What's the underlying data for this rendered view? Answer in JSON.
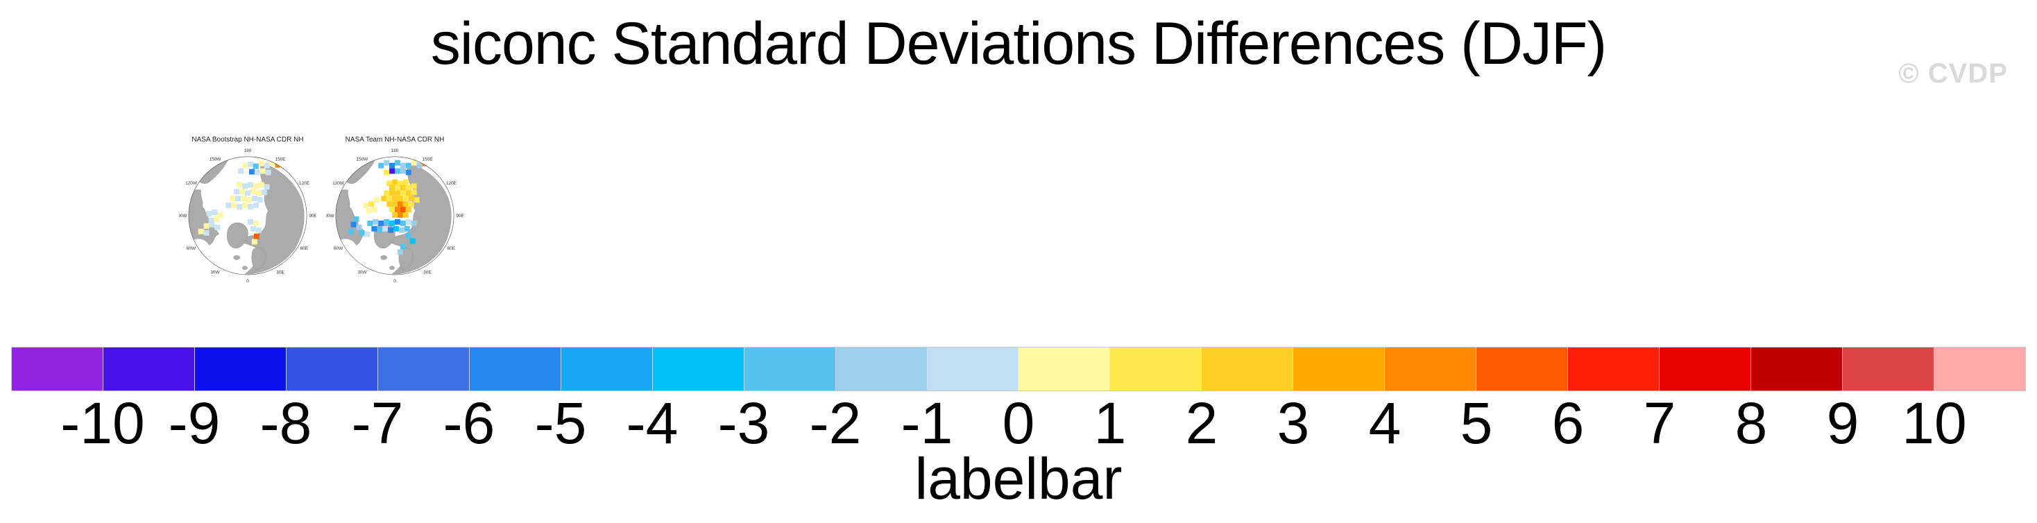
{
  "header": {
    "title": "siconc Standard Deviations Differences (DJF)",
    "watermark": "© CVDP"
  },
  "maps": [
    {
      "title": "NASA Bootstrap NH-NASA CDR NH",
      "lon_labels": [
        "180",
        "150W",
        "120W",
        "90W",
        "60W",
        "30W",
        "0",
        "30E",
        "60E",
        "90E",
        "120E",
        "150E"
      ],
      "patches": [
        [
          96,
          30,
          "Y"
        ],
        [
          104,
          28,
          "B"
        ],
        [
          112,
          31,
          "c"
        ],
        [
          120,
          27,
          "Y"
        ],
        [
          128,
          30,
          "B"
        ],
        [
          136,
          26,
          "Y"
        ],
        [
          144,
          29,
          "o"
        ],
        [
          90,
          38,
          "B"
        ],
        [
          106,
          39,
          "d"
        ],
        [
          114,
          40,
          "B"
        ],
        [
          122,
          38,
          "Y"
        ],
        [
          130,
          40,
          "B"
        ],
        [
          88,
          58,
          "Y"
        ],
        [
          96,
          60,
          "B"
        ],
        [
          104,
          58,
          "B"
        ],
        [
          112,
          60,
          "Y"
        ],
        [
          120,
          58,
          "Y"
        ],
        [
          128,
          61,
          "B"
        ],
        [
          84,
          68,
          "B"
        ],
        [
          92,
          68,
          "Y"
        ],
        [
          100,
          70,
          "B"
        ],
        [
          108,
          68,
          "Y"
        ],
        [
          116,
          70,
          "Y"
        ],
        [
          124,
          69,
          "B"
        ],
        [
          78,
          78,
          "Y"
        ],
        [
          86,
          78,
          "B"
        ],
        [
          94,
          78,
          "Y"
        ],
        [
          102,
          80,
          "Y"
        ],
        [
          110,
          78,
          "B"
        ],
        [
          118,
          80,
          "B"
        ],
        [
          72,
          88,
          "B"
        ],
        [
          80,
          88,
          "Y"
        ],
        [
          88,
          90,
          "B"
        ],
        [
          96,
          88,
          "Y"
        ],
        [
          104,
          90,
          "B"
        ],
        [
          112,
          88,
          "B"
        ],
        [
          44,
          100,
          "B"
        ],
        [
          52,
          98,
          "B"
        ],
        [
          60,
          102,
          "Y"
        ],
        [
          47,
          110,
          "B"
        ],
        [
          55,
          108,
          "Y"
        ],
        [
          40,
          118,
          "Y"
        ],
        [
          48,
          116,
          "B"
        ],
        [
          56,
          120,
          "B"
        ],
        [
          32,
          126,
          "Y"
        ],
        [
          40,
          128,
          "B"
        ],
        [
          104,
          112,
          "B"
        ],
        [
          112,
          114,
          "Y"
        ],
        [
          108,
          122,
          "B"
        ],
        [
          116,
          124,
          "B"
        ],
        [
          113,
          133,
          "O"
        ],
        [
          110,
          141,
          "Y"
        ]
      ]
    },
    {
      "title": "NASA Team NH-NASA CDR NH",
      "lon_labels": [
        "180",
        "150W",
        "120W",
        "90W",
        "60W",
        "30W",
        "0",
        "30E",
        "60E",
        "90E",
        "120E",
        "150E"
      ],
      "patches": [
        [
          80,
          30,
          "c"
        ],
        [
          88,
          26,
          "b"
        ],
        [
          96,
          30,
          "d"
        ],
        [
          104,
          26,
          "c"
        ],
        [
          112,
          30,
          "b"
        ],
        [
          96,
          38,
          "v"
        ],
        [
          104,
          38,
          "c"
        ],
        [
          112,
          38,
          "b"
        ],
        [
          120,
          30,
          "c"
        ],
        [
          128,
          26,
          "Y"
        ],
        [
          136,
          30,
          "b"
        ],
        [
          144,
          27,
          "o"
        ],
        [
          88,
          40,
          "y"
        ],
        [
          120,
          40,
          "d"
        ],
        [
          92,
          56,
          "y"
        ],
        [
          100,
          54,
          "G"
        ],
        [
          108,
          56,
          "y"
        ],
        [
          116,
          54,
          "y"
        ],
        [
          96,
          62,
          "G"
        ],
        [
          104,
          62,
          "y"
        ],
        [
          112,
          62,
          "G"
        ],
        [
          120,
          62,
          "y"
        ],
        [
          128,
          60,
          "y"
        ],
        [
          88,
          70,
          "y"
        ],
        [
          96,
          70,
          "G"
        ],
        [
          104,
          70,
          "G"
        ],
        [
          112,
          70,
          "y"
        ],
        [
          120,
          70,
          "G"
        ],
        [
          128,
          69,
          "y"
        ],
        [
          84,
          78,
          "G"
        ],
        [
          92,
          78,
          "y"
        ],
        [
          100,
          78,
          "G"
        ],
        [
          108,
          78,
          "G"
        ],
        [
          116,
          78,
          "y"
        ],
        [
          124,
          78,
          "G"
        ],
        [
          132,
          80,
          "y"
        ],
        [
          92,
          86,
          "G"
        ],
        [
          100,
          86,
          "G"
        ],
        [
          108,
          86,
          "o"
        ],
        [
          116,
          86,
          "G"
        ],
        [
          124,
          87,
          "y"
        ],
        [
          96,
          94,
          "y"
        ],
        [
          104,
          94,
          "o"
        ],
        [
          112,
          94,
          "O"
        ],
        [
          120,
          94,
          "G"
        ],
        [
          100,
          102,
          "G"
        ],
        [
          108,
          102,
          "o"
        ],
        [
          116,
          102,
          "G"
        ],
        [
          58,
          88,
          "Y"
        ],
        [
          66,
          86,
          "y"
        ],
        [
          62,
          96,
          "Y"
        ],
        [
          70,
          94,
          "Y"
        ],
        [
          74,
          80,
          "Y"
        ],
        [
          64,
          114,
          "c"
        ],
        [
          72,
          112,
          "b"
        ],
        [
          80,
          114,
          "d"
        ],
        [
          88,
          112,
          "c"
        ],
        [
          96,
          114,
          "C"
        ],
        [
          104,
          112,
          "d"
        ],
        [
          112,
          114,
          "c"
        ],
        [
          120,
          112,
          "B"
        ],
        [
          128,
          114,
          "b"
        ],
        [
          70,
          122,
          "d"
        ],
        [
          78,
          124,
          "c"
        ],
        [
          86,
          122,
          "B"
        ],
        [
          94,
          124,
          "d"
        ],
        [
          102,
          122,
          "C"
        ],
        [
          110,
          124,
          "b"
        ],
        [
          118,
          122,
          "c"
        ],
        [
          44,
          108,
          "c"
        ],
        [
          40,
          116,
          "d"
        ],
        [
          48,
          120,
          "b"
        ],
        [
          36,
          126,
          "c"
        ],
        [
          120,
          132,
          "c"
        ],
        [
          126,
          140,
          "C"
        ],
        [
          60,
          130,
          "B"
        ],
        [
          52,
          128,
          "c"
        ],
        [
          112,
          148,
          "c"
        ],
        [
          108,
          156,
          "b"
        ]
      ]
    }
  ],
  "palette": {
    "Y": "#FFF6A3",
    "y": "#FFE84D",
    "G": "#FFCF26",
    "o": "#FF8800",
    "O": "#FF5A00",
    "B": "#C9E2F4",
    "b": "#9CCFEA",
    "c": "#55C3F0",
    "C": "#00C2F8",
    "d": "#2787F0",
    "v": "#4713EA"
  },
  "map_colors": {
    "land": "#ABABAB",
    "outline": "#444444",
    "label": "#333333"
  },
  "colorbar": {
    "caption": "labelbar",
    "labels": [
      "-10",
      "-9",
      "-8",
      "-7",
      "-6",
      "-5",
      "-4",
      "-3",
      "-2",
      "-1",
      "0",
      "1",
      "2",
      "3",
      "4",
      "5",
      "6",
      "7",
      "8",
      "9",
      "10"
    ],
    "cell_colors": [
      "#9125E2",
      "#4713EA",
      "#0F10EE",
      "#3152E2",
      "#3E70E8",
      "#2787F0",
      "#17A7F5",
      "#00C2F8",
      "#55C3F0",
      "#9CCFEA",
      "#BFE0F2",
      "#FFF9A0",
      "#FFE84D",
      "#FFCF26",
      "#FFA900",
      "#FF8800",
      "#FF5A00",
      "#FF1E08",
      "#E60000",
      "#C00000",
      "#DC4444",
      "#FFAAAA"
    ]
  },
  "chart_data": {
    "type": "heatmap",
    "title": "siconc Standard Deviations Differences (DJF)",
    "panels": [
      {
        "title": "NASA Bootstrap NH-NASA CDR NH",
        "projection": "north-polar-stereographic",
        "summary": "scattered weak positive (pale yellow) and weak negative (pale blue) differences across the central Arctic, small orange spot near Svalbard"
      },
      {
        "title": "NASA Team NH-NASA CDR NH",
        "projection": "north-polar-stereographic",
        "summary": "strong positive (yellow/orange) differences over the central Arctic with negative (blue/cyan) band along the marginal seas and one dark violet cell"
      }
    ],
    "colorbar": {
      "label": "labelbar",
      "ticks": [
        -10,
        -9,
        -8,
        -7,
        -6,
        -5,
        -4,
        -3,
        -2,
        -1,
        0,
        1,
        2,
        3,
        4,
        5,
        6,
        7,
        8,
        9,
        10
      ],
      "n_colors": 22,
      "tick_min": -10,
      "tick_max": 10,
      "tick_step": 1
    },
    "legend_position": "bottom",
    "grid": false
  }
}
